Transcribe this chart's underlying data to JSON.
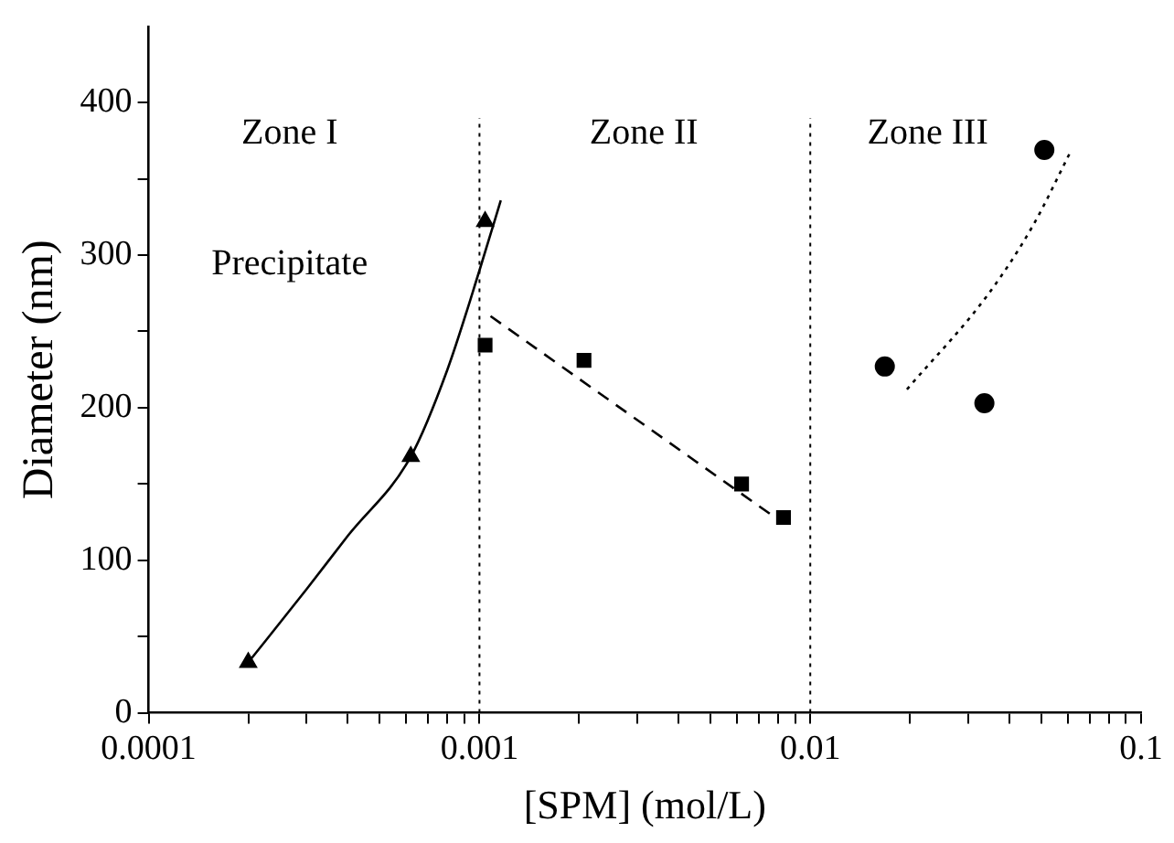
{
  "chart_data": {
    "type": "scatter",
    "xlabel": "[SPM] (mol/L)",
    "ylabel": "Diameter (nm)",
    "log": "x",
    "xlim": [
      0.0001,
      0.1
    ],
    "ylim": [
      0,
      450
    ],
    "xticks": [
      {
        "value": 0.0001,
        "label": "0.0001"
      },
      {
        "value": 0.0002,
        "label": null
      },
      {
        "value": 0.0003,
        "label": null
      },
      {
        "value": 0.0004,
        "label": null
      },
      {
        "value": 0.0005,
        "label": null
      },
      {
        "value": 0.0006,
        "label": null
      },
      {
        "value": 0.0007,
        "label": null
      },
      {
        "value": 0.0008,
        "label": null
      },
      {
        "value": 0.0009,
        "label": null
      },
      {
        "value": 0.001,
        "label": "0.001"
      },
      {
        "value": 0.002,
        "label": null
      },
      {
        "value": 0.003,
        "label": null
      },
      {
        "value": 0.004,
        "label": null
      },
      {
        "value": 0.005,
        "label": null
      },
      {
        "value": 0.006,
        "label": null
      },
      {
        "value": 0.007,
        "label": null
      },
      {
        "value": 0.008,
        "label": null
      },
      {
        "value": 0.009,
        "label": null
      },
      {
        "value": 0.01,
        "label": "0.01"
      },
      {
        "value": 0.02,
        "label": null
      },
      {
        "value": 0.03,
        "label": null
      },
      {
        "value": 0.04,
        "label": null
      },
      {
        "value": 0.05,
        "label": null
      },
      {
        "value": 0.06,
        "label": null
      },
      {
        "value": 0.07,
        "label": null
      },
      {
        "value": 0.08,
        "label": null
      },
      {
        "value": 0.09,
        "label": null
      },
      {
        "value": 0.1,
        "label": "0.1"
      }
    ],
    "yticks": [
      0,
      {
        "value": 50,
        "label": null
      },
      100,
      {
        "value": 150,
        "label": null
      },
      200,
      {
        "value": 250,
        "label": null
      },
      300,
      {
        "value": 350,
        "label": null
      },
      400
    ],
    "grid": false,
    "legend": false,
    "series": [
      {
        "marker": "triangle",
        "color": "#000000",
        "x": [
          0.0002,
          0.00062,
          0.00104
        ],
        "values": [
          33,
          168,
          322
        ]
      },
      {
        "marker": "square",
        "color": "#000000",
        "x": [
          0.00104,
          0.00207,
          0.0062,
          0.0083
        ],
        "values": [
          241,
          231,
          150,
          128
        ]
      },
      {
        "marker": "circle",
        "color": "#000000",
        "x": [
          0.0168,
          0.0336,
          0.051
        ],
        "values": [
          227,
          203,
          369
        ]
      },
      {
        "type": "line",
        "marker": "none",
        "line_style": "solid",
        "color": "#000000",
        "x": [
          0.0002,
          0.0003,
          0.0004,
          0.00062,
          0.0008,
          0.001,
          0.00116
        ],
        "values": [
          33,
          81,
          116,
          168,
          225,
          290,
          336
        ]
      },
      {
        "type": "line",
        "marker": "none",
        "line_style": "dashed",
        "color": "#000000",
        "x": [
          0.00108,
          0.0076
        ],
        "values": [
          260,
          130
        ]
      },
      {
        "type": "line",
        "marker": "none",
        "line_style": "dotted",
        "color": "#000000",
        "x": [
          0.0196,
          0.0344,
          0.047,
          0.0616
        ],
        "values": [
          212,
          274,
          319,
          369
        ]
      }
    ],
    "ref_lines": [
      {
        "axis": "x",
        "value": 0.001,
        "line_style": "dotted",
        "color": "#000000"
      },
      {
        "axis": "x",
        "value": 0.01,
        "line_style": "dotted",
        "color": "#000000"
      }
    ],
    "annotations": [
      "Zone I",
      "Zone II",
      "Zone III",
      "Precipitate"
    ]
  }
}
